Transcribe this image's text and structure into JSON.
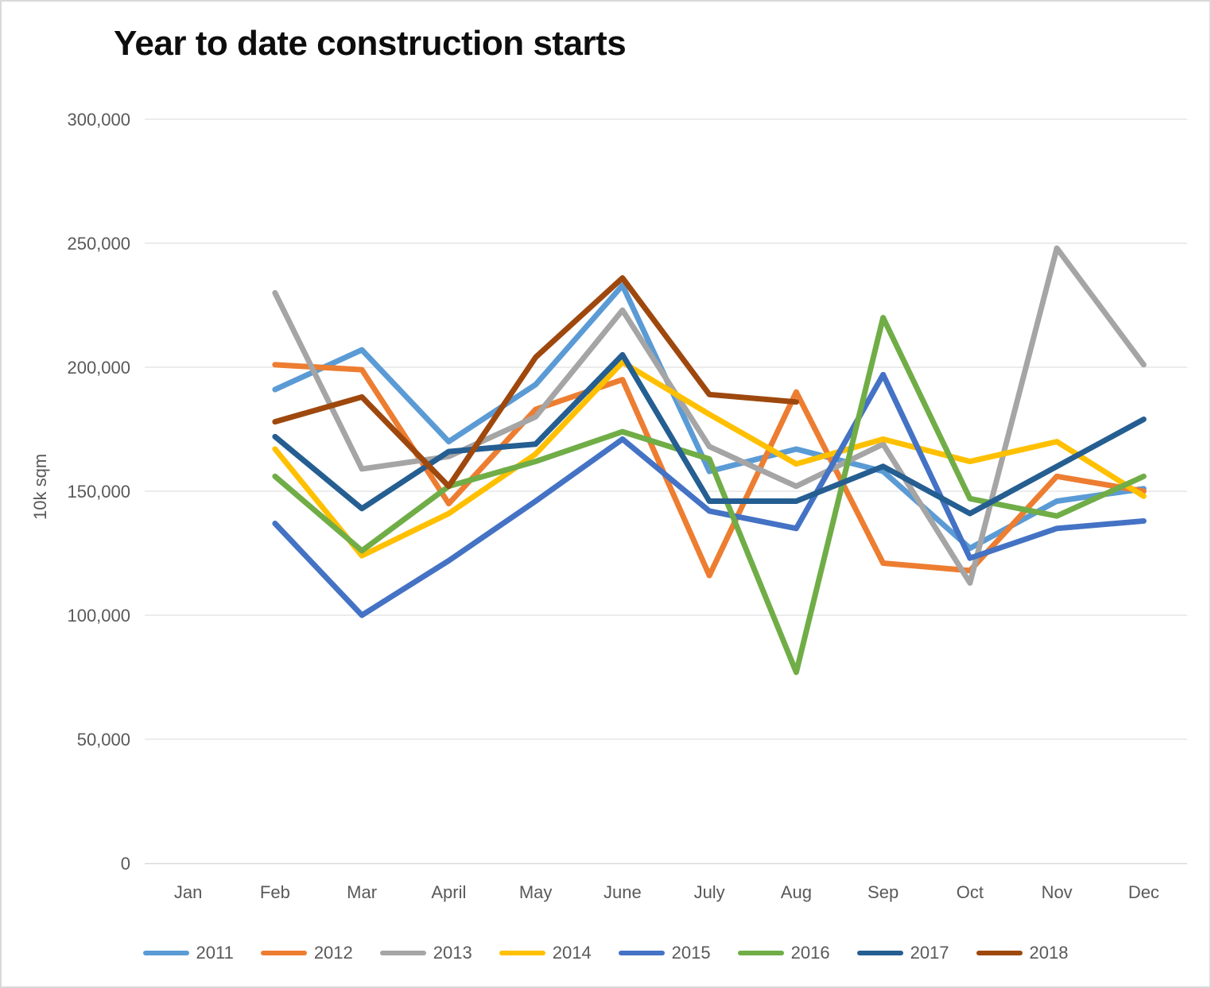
{
  "chart_data": {
    "type": "line",
    "title": "Year to date construction starts",
    "ylabel": "10k sqm",
    "xlabel": "",
    "grid": true,
    "legend_position": "bottom",
    "categories": [
      "Jan",
      "Feb",
      "Mar",
      "April",
      "May",
      "June",
      "July",
      "Aug",
      "Sep",
      "Oct",
      "Nov",
      "Dec"
    ],
    "y_axis": {
      "min": 0,
      "max": 300000,
      "step": 50000,
      "tick_labels": [
        "0",
        "50,000",
        "100,000",
        "150,000",
        "200,000",
        "250,000",
        "300,000"
      ]
    },
    "series": [
      {
        "name": "2011",
        "color": "#5B9BD5",
        "values": [
          null,
          191000,
          207000,
          170000,
          193000,
          233000,
          158000,
          167000,
          158000,
          127000,
          146000,
          151000
        ]
      },
      {
        "name": "2012",
        "color": "#ED7D31",
        "values": [
          null,
          201000,
          199000,
          145000,
          183000,
          195000,
          116000,
          190000,
          121000,
          118000,
          156000,
          150000
        ]
      },
      {
        "name": "2013",
        "color": "#A5A5A5",
        "values": [
          null,
          230000,
          159000,
          164000,
          180000,
          223000,
          168000,
          152000,
          169000,
          113000,
          248000,
          201000
        ]
      },
      {
        "name": "2014",
        "color": "#FFC000",
        "values": [
          null,
          167000,
          124000,
          141000,
          165000,
          202000,
          181000,
          161000,
          171000,
          162000,
          170000,
          148000
        ]
      },
      {
        "name": "2015",
        "color": "#4472C4",
        "values": [
          null,
          137000,
          100000,
          122000,
          146000,
          171000,
          142000,
          135000,
          197000,
          123000,
          135000,
          138000
        ]
      },
      {
        "name": "2016",
        "color": "#70AD47",
        "values": [
          null,
          156000,
          126000,
          152000,
          162000,
          174000,
          163000,
          77000,
          220000,
          147000,
          140000,
          156000
        ]
      },
      {
        "name": "2017",
        "color": "#255E91",
        "values": [
          null,
          172000,
          143000,
          166000,
          169000,
          205000,
          146000,
          146000,
          160000,
          141000,
          160000,
          179000
        ]
      },
      {
        "name": "2018",
        "color": "#9E480E",
        "values": [
          null,
          178000,
          188000,
          152000,
          204000,
          236000,
          189000,
          186000,
          null,
          null,
          null,
          null
        ]
      }
    ]
  },
  "style": {
    "gridline_color": "#D9D9D9",
    "axis_line_color": "#D9D9D9",
    "tick_text_color": "#595959",
    "line_width": 7
  }
}
